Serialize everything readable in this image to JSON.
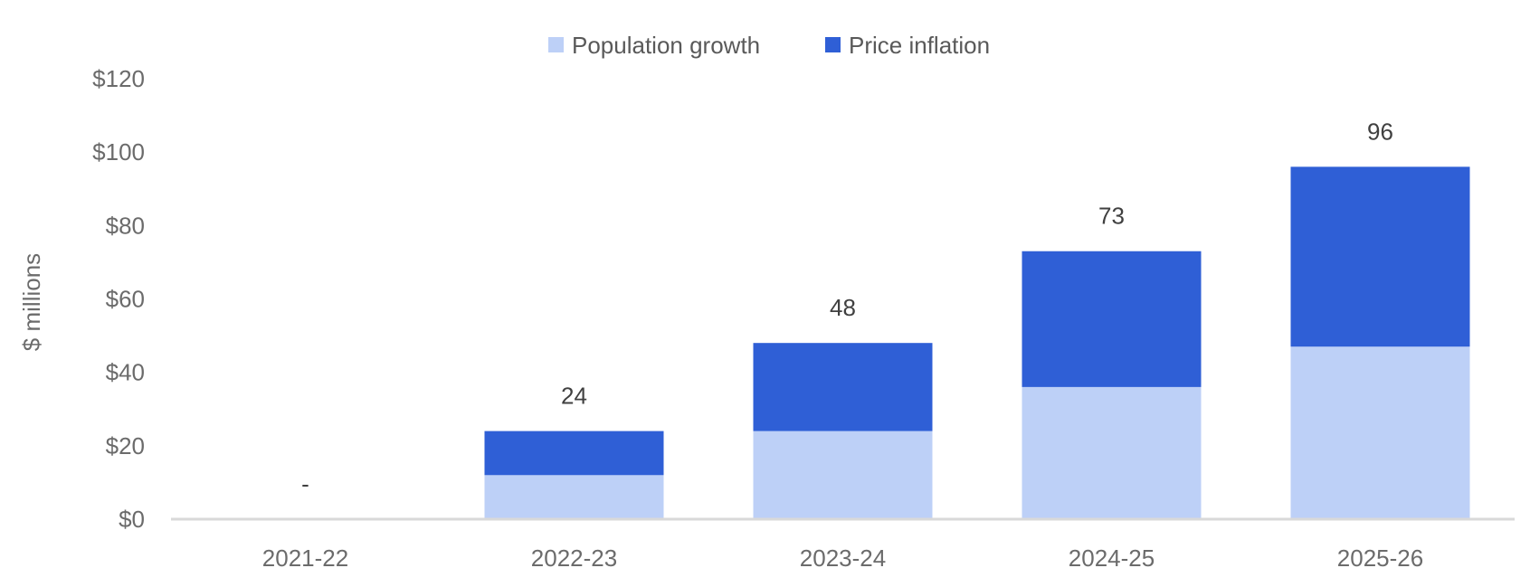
{
  "chart_data": {
    "type": "bar",
    "stacked": true,
    "categories": [
      "2021-22",
      "2022-23",
      "2023-24",
      "2024-25",
      "2025-26"
    ],
    "series": [
      {
        "name": "Population growth",
        "color": "#bdd0f7",
        "values": [
          0,
          12,
          24,
          36,
          47
        ]
      },
      {
        "name": "Price inflation",
        "color": "#2f5fd6",
        "values": [
          0,
          12,
          24,
          37,
          49
        ]
      }
    ],
    "totals": [
      "-",
      "24",
      "48",
      "73",
      "96"
    ],
    "ylabel": "$ millions",
    "ylim": [
      0,
      120
    ],
    "yticks": [
      0,
      20,
      40,
      60,
      80,
      100,
      120
    ],
    "ytick_labels": [
      "$0",
      "$20",
      "$40",
      "$60",
      "$80",
      "$100",
      "$120"
    ],
    "grid": false,
    "legend_position": "top-center",
    "axis_color": "#d9d9d9"
  }
}
